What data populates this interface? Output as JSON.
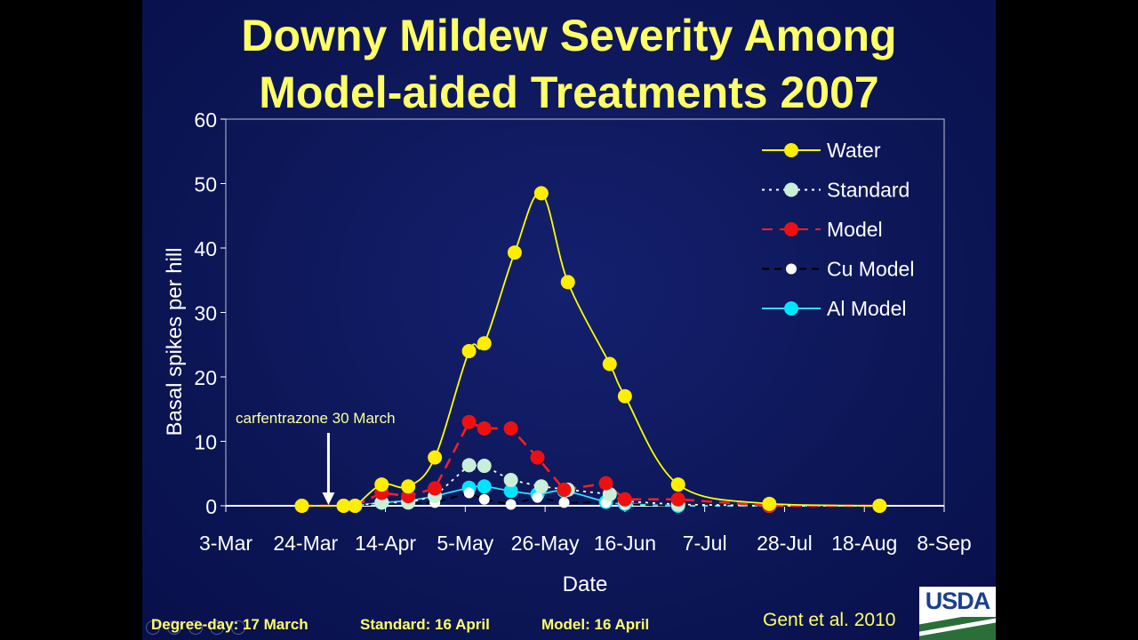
{
  "slide": {
    "title_line1": "Downy Mildew Severity Among",
    "title_line2": "Model-aided Treatments 2007",
    "footer": {
      "degree_day": "Degree-day: 17 March",
      "standard": "Standard: 16 April",
      "model": "Model: 16 April"
    },
    "citation": "Gent et al. 2010",
    "logo_text": "USDA"
  },
  "chart_data": {
    "type": "line",
    "xlabel": "Date",
    "ylabel": "Basal spikes per hill",
    "ylim": [
      0,
      60
    ],
    "yticks": [
      0,
      10,
      20,
      30,
      40,
      50,
      60
    ],
    "xticks": [
      "3-Mar",
      "24-Mar",
      "14-Apr",
      "5-May",
      "26-May",
      "16-Jun",
      "7-Jul",
      "28-Jul",
      "18-Aug",
      "8-Sep"
    ],
    "xlim_days_from_3mar": [
      0,
      189
    ],
    "annotation": "carfentrazone 30 March",
    "annotation_day": 27,
    "legend_position": "top-right",
    "series": [
      {
        "name": "Water",
        "color": "#ffff00",
        "marker": "#ffee00",
        "dash": "",
        "smooth": true,
        "x": [
          20,
          31,
          34,
          41,
          48,
          55,
          64,
          68,
          76,
          83,
          90,
          101,
          105,
          119,
          143,
          172
        ],
        "y": [
          0,
          0,
          0,
          3.3,
          3,
          7.5,
          24,
          25.2,
          39.3,
          48.5,
          34.7,
          22,
          17,
          3.3,
          0.3,
          0
        ]
      },
      {
        "name": "Standard",
        "color": "#ffffff",
        "marker": "#c8f0d8",
        "dash": "3,5",
        "smooth": false,
        "x": [
          20,
          31,
          34,
          41,
          48,
          55,
          64,
          68,
          75,
          83,
          90,
          101,
          105,
          119,
          143,
          172
        ],
        "y": [
          0,
          0,
          0,
          0.5,
          0.5,
          1.5,
          6.3,
          6.2,
          4,
          3,
          2.5,
          1.8,
          0.7,
          0.2,
          0,
          0
        ]
      },
      {
        "name": "Model",
        "color": "#ff2020",
        "marker": "#ee1010",
        "dash": "12,8",
        "smooth": false,
        "x": [
          20,
          31,
          34,
          41,
          48,
          55,
          64,
          68,
          75,
          82,
          89,
          100,
          105,
          119,
          143,
          172
        ],
        "y": [
          0,
          0,
          0,
          2,
          1.5,
          2.7,
          13,
          12,
          12,
          7.5,
          2.5,
          3.5,
          1,
          1,
          0,
          0
        ]
      },
      {
        "name": "Cu Model",
        "color": "#000000",
        "marker": "#ffffff",
        "dash": "8,6",
        "smooth": false,
        "x": [
          20,
          31,
          34,
          41,
          48,
          55,
          64,
          68,
          75,
          82,
          89,
          100,
          105,
          119,
          143,
          172
        ],
        "y": [
          0,
          0,
          0,
          0.3,
          0.3,
          0.5,
          2,
          1,
          0.2,
          1.3,
          0.5,
          0.5,
          0.2,
          0,
          0,
          0
        ]
      },
      {
        "name": "Al Model",
        "color": "#33ddff",
        "marker": "#00e5ff",
        "dash": "",
        "smooth": true,
        "x": [
          20,
          31,
          34,
          41,
          48,
          55,
          64,
          68,
          75,
          82,
          89,
          100,
          105,
          119,
          143,
          172
        ],
        "y": [
          0,
          0,
          0,
          0.5,
          0.8,
          1.5,
          2.8,
          3,
          2.3,
          1.8,
          2.3,
          0.6,
          0.3,
          0,
          0,
          0
        ]
      }
    ]
  }
}
